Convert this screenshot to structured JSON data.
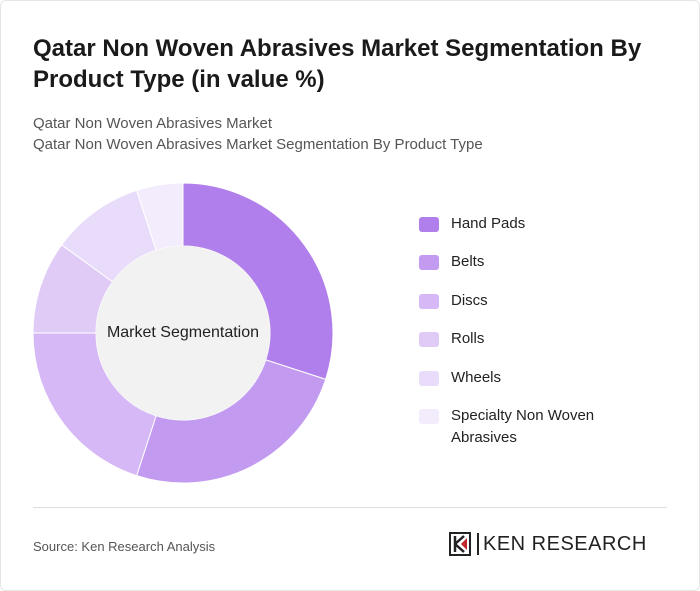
{
  "chart_data": {
    "type": "donut",
    "title": "Qatar Non Woven Abrasives Market Segmentation By Product Type (in value %)",
    "subtitle": [
      "Qatar Non Woven Abrasives Market",
      "Qatar Non Woven Abrasives Market Segmentation By Product Type"
    ],
    "center_label": "Market Segmentation",
    "categories": [
      "Hand Pads",
      "Belts",
      "Discs",
      "Rolls",
      "Wheels",
      "Specialty Non Woven Abrasives"
    ],
    "values": [
      30,
      25,
      20,
      10,
      10,
      5
    ],
    "colors": [
      "#b07fec",
      "#c29af0",
      "#d5b8f5",
      "#e0cbf7",
      "#e9dcfa",
      "#f3ecfc"
    ],
    "source": "Source: Ken Research Analysis",
    "brand": "KEN RESEARCH"
  }
}
